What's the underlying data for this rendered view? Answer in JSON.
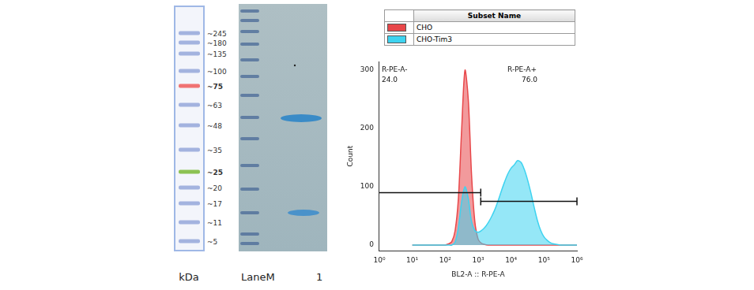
{
  "ladder": {
    "unit": "kDa",
    "markers": [
      {
        "value": 245,
        "label": "~245"
      },
      {
        "value": 180,
        "label": "~180"
      },
      {
        "value": 135,
        "label": "~135"
      },
      {
        "value": 100,
        "label": "~100"
      },
      {
        "value": 75,
        "label": "~75",
        "color": "#ef6b6b"
      },
      {
        "value": 63,
        "label": "~63"
      },
      {
        "value": 48,
        "label": "~48"
      },
      {
        "value": 35,
        "label": "~35"
      },
      {
        "value": 25,
        "label": "~25",
        "color": "#86bf4a"
      },
      {
        "value": 20,
        "label": "~20"
      },
      {
        "value": 17,
        "label": "~17"
      },
      {
        "value": 11,
        "label": "~11"
      },
      {
        "value": 5,
        "label": "~5"
      }
    ]
  },
  "gel": {
    "lanes": [
      "LaneM",
      "1"
    ]
  },
  "chart_data": {
    "type": "line",
    "x_label": "BL2-A :: R-PE-A",
    "y_label": "Count",
    "legend_title": "Subset Name",
    "legend": "top",
    "log": "x",
    "grid": false,
    "xlim": [
      1,
      1000000
    ],
    "xticks": [
      {
        "value": 1,
        "label": "10⁰"
      },
      {
        "value": 10,
        "label": "10¹"
      },
      {
        "value": 100,
        "label": "10²"
      },
      {
        "value": 1000,
        "label": "10³"
      },
      {
        "value": 10000,
        "label": "10⁴"
      },
      {
        "value": 100000,
        "label": "10⁵"
      },
      {
        "value": 1000000,
        "label": "10⁶"
      }
    ],
    "ylim": [
      -10,
      315
    ],
    "yticks": [
      0,
      100,
      200,
      300
    ],
    "x": [
      10,
      12.6,
      15.8,
      20,
      25.1,
      31.6,
      39.8,
      50.1,
      63.1,
      79.4,
      100,
      126,
      158,
      200,
      251,
      316,
      398,
      501,
      631,
      794,
      1000,
      1260,
      1580,
      2000,
      2510,
      3160,
      3980,
      5010,
      6310,
      7940,
      10000,
      12600,
      15800,
      20000,
      25100,
      31600,
      39800,
      50100,
      63100,
      79400,
      100000,
      126000,
      158000,
      200000,
      251000,
      316000,
      398000,
      501000,
      631000,
      794000,
      1000000
    ],
    "series": [
      {
        "name": "CHO",
        "color": "#e8474a",
        "values": [
          0,
          0,
          0,
          0,
          0,
          0,
          0,
          0,
          0,
          0,
          0,
          2,
          6,
          25,
          80,
          200,
          300,
          250,
          120,
          40,
          10,
          3,
          1,
          0,
          0,
          0,
          0,
          0,
          0,
          0,
          0,
          0,
          0,
          0,
          0,
          0,
          0,
          0,
          0,
          0,
          0,
          0,
          0,
          0,
          0,
          0,
          0,
          0,
          0,
          0,
          0
        ]
      },
      {
        "name": "CHO-Tim3",
        "color": "#3ed3f0",
        "values": [
          0,
          0,
          0,
          0,
          0,
          0,
          0,
          0,
          0,
          0,
          0,
          0,
          0,
          5,
          30,
          75,
          100,
          80,
          40,
          25,
          22,
          25,
          30,
          38,
          48,
          60,
          75,
          92,
          108,
          122,
          132,
          138,
          145,
          142,
          130,
          112,
          90,
          65,
          42,
          25,
          14,
          8,
          4,
          2,
          1,
          0,
          0,
          0,
          0,
          0,
          0
        ]
      }
    ],
    "gates": [
      {
        "name": "R-PE-A-",
        "range": [
          1,
          1200
        ],
        "level": 90,
        "percent": {
          "value": 24,
          "label": "24.0"
        }
      },
      {
        "name": "R-PE-A+",
        "range": [
          1200,
          1000000
        ],
        "level": 75,
        "percent": {
          "value": 76,
          "label": "76.0"
        }
      }
    ]
  }
}
